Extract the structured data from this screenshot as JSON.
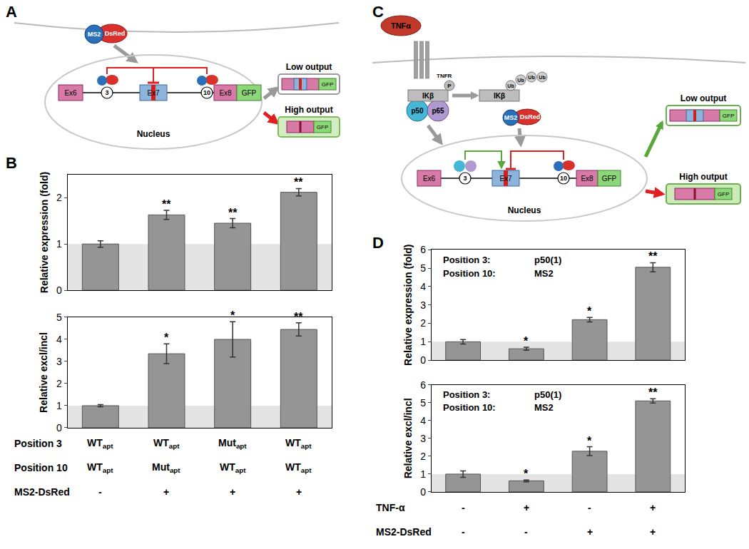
{
  "panels": [
    "A",
    "B",
    "C",
    "D"
  ],
  "diagrams": {
    "A": {
      "fusion": [
        "MS2",
        "DsRed"
      ],
      "exons": [
        "Ex6",
        "Ex7",
        "Ex8"
      ],
      "reporter": "GFP",
      "sites": [
        "3",
        "10"
      ],
      "compartment": "Nucleus",
      "outputs": [
        "Low output",
        "High output"
      ]
    },
    "C": {
      "ligand": "TNFα",
      "receptor": "TNFR",
      "phospho": "P",
      "inhibitor": [
        "IKβ",
        "IKβ"
      ],
      "ubiquitin": [
        "Ub",
        "Ub",
        "Ub",
        "Ub"
      ],
      "subunits": [
        "p50",
        "p65"
      ],
      "fusion": [
        "MS2",
        "DsRed"
      ],
      "exons": [
        "Ex6",
        "Ex7",
        "Ex8"
      ],
      "reporter": "GFP",
      "sites": [
        "3",
        "10"
      ],
      "compartment": "Nucleus",
      "outputs": [
        "Low output",
        "High output"
      ]
    }
  },
  "chart_data": [
    {
      "type": "bar",
      "y_label": "Relative expression (fold)",
      "categories": [
        null,
        null,
        null,
        null
      ],
      "values": [
        1.0,
        1.63,
        1.45,
        2.12
      ],
      "errors": [
        0.07,
        0.1,
        0.1,
        0.08
      ],
      "significance": [
        null,
        "**",
        "**",
        "**"
      ],
      "shaded_band": [
        0,
        1
      ],
      "color": "#959595",
      "ylim": [
        0,
        2.5
      ],
      "yticks": [
        0,
        1,
        2
      ],
      "tick_labels": "y"
    },
    {
      "type": "bar",
      "y_label": "Relative excl/incl",
      "categories": [
        null,
        null,
        null,
        null
      ],
      "values": [
        1.0,
        3.35,
        4.0,
        4.45
      ],
      "errors": [
        0.05,
        0.45,
        0.8,
        0.3
      ],
      "significance": [
        null,
        "*",
        "*",
        "**"
      ],
      "shaded_band": [
        0,
        1
      ],
      "color": "#959595",
      "ylim": [
        0,
        5
      ],
      "yticks": [
        0,
        1,
        2,
        3,
        4,
        5
      ],
      "tick_labels": "y",
      "conditions": [
        {
          "label": "Position 3",
          "values": [
            "WT",
            "WT",
            "Mut",
            "WT"
          ],
          "subscripts": [
            "apt",
            "apt",
            "apt",
            "apt"
          ]
        },
        {
          "label": "Position 10",
          "values": [
            "WT",
            "Mut",
            "WT",
            "WT"
          ],
          "subscripts": [
            "apt",
            "apt",
            "apt",
            "apt"
          ]
        },
        {
          "label": "MS2-DsRed",
          "values": [
            "-",
            "+",
            "+",
            "+"
          ]
        }
      ]
    },
    {
      "type": "bar",
      "y_label": "Relative expression (fold)",
      "categories": [
        null,
        null,
        null,
        null
      ],
      "values": [
        1.0,
        0.62,
        2.2,
        5.05
      ],
      "errors": [
        0.12,
        0.08,
        0.12,
        0.25
      ],
      "significance": [
        null,
        "*",
        "*",
        "**"
      ],
      "shaded_band": [
        0,
        1
      ],
      "color": "#959595",
      "ylim": [
        0,
        6
      ],
      "yticks": [
        0,
        1,
        2,
        3,
        4,
        5,
        6
      ],
      "tick_labels": "y",
      "inset": [
        {
          "label": "Position 3:",
          "value": "p50(1)"
        },
        {
          "label": "Position 10:",
          "value": "MS2"
        }
      ]
    },
    {
      "type": "bar",
      "y_label": "Relative excl/incl",
      "categories": [
        null,
        null,
        null,
        null
      ],
      "values": [
        1.0,
        0.62,
        2.28,
        5.1
      ],
      "errors": [
        0.18,
        0.05,
        0.25,
        0.12
      ],
      "significance": [
        null,
        "*",
        "*",
        "**"
      ],
      "shaded_band": [
        0,
        1
      ],
      "color": "#959595",
      "ylim": [
        0,
        6
      ],
      "yticks": [
        0,
        1,
        2,
        3,
        4,
        5,
        6
      ],
      "tick_labels": "y",
      "inset": [
        {
          "label": "Position 3:",
          "value": "p50(1)"
        },
        {
          "label": "Position 10:",
          "value": "MS2"
        }
      ],
      "conditions": [
        {
          "label": "TNF-α",
          "values": [
            "-",
            "+",
            "-",
            "+"
          ]
        },
        {
          "label": "MS2-DsRed",
          "values": [
            "-",
            "-",
            "+",
            "+"
          ]
        }
      ]
    }
  ]
}
